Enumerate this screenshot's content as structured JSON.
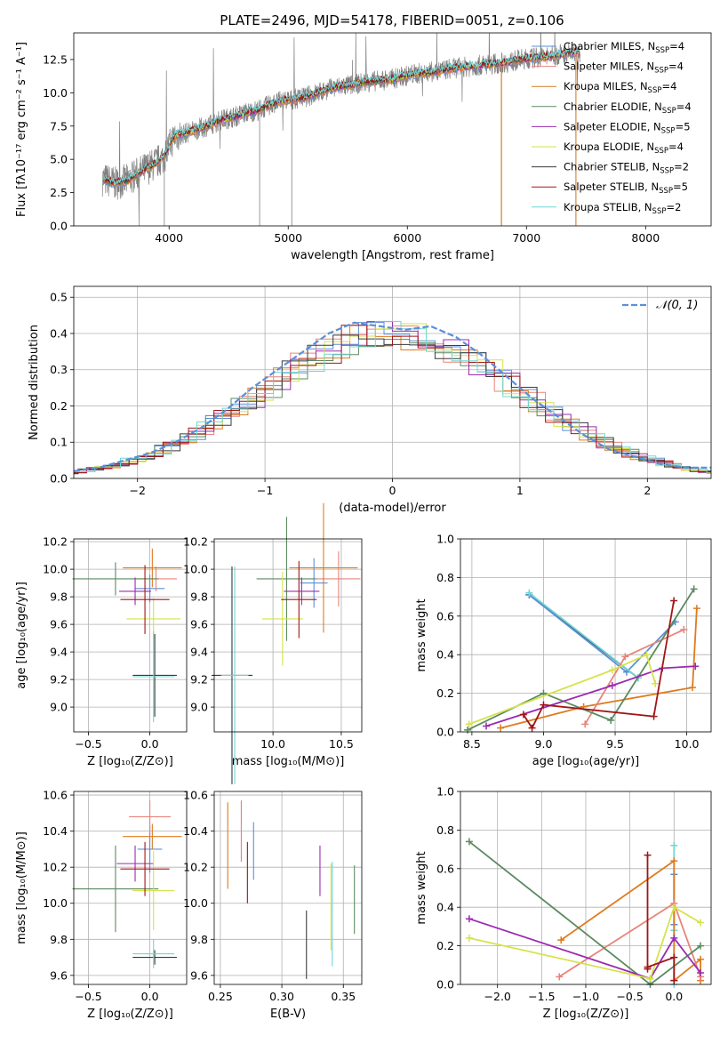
{
  "colors": {
    "miles_chab": "#5b8fd9",
    "miles_salp": "#e8837a",
    "miles_krou": "#de7b1f",
    "elodie_chab": "#5b8a60",
    "elodie_salp": "#9c2ab0",
    "elodie_krou": "#d6e24a",
    "stelib_chab": "#3a3a3a",
    "stelib_salp": "#a01616",
    "stelib_krou": "#6fd6d6",
    "gauss": "#5b8fd9",
    "data": "#808080"
  },
  "chart_data": [
    {
      "id": "spectrum",
      "type": "line",
      "title": "PLATE=2496, MJD=54178, FIBERID=0051, z=0.106",
      "xlabel": "wavelength [Angstrom, rest frame]",
      "ylabel": "Flux [fλ10⁻¹⁷ erg cm⁻² s⁻¹ A⁻¹]",
      "xlim": [
        3200,
        8550
      ],
      "ylim": [
        0,
        14.5
      ],
      "xticks": [
        "4000",
        "5000",
        "6000",
        "7000",
        "8000"
      ],
      "yticks": [
        "0.0",
        "2.5",
        "5.0",
        "7.5",
        "10.0",
        "12.5"
      ],
      "x": [
        3450,
        3550,
        3650,
        3750,
        3850,
        3950,
        4050,
        4150,
        4250,
        4350,
        4450,
        4550,
        4650,
        4750,
        4850,
        4950,
        5050,
        5150,
        5250,
        5350,
        5450,
        5550,
        5650,
        5750,
        5850,
        5950,
        6050,
        6150,
        6250,
        6350,
        6450,
        6550,
        6650,
        6750,
        6850,
        6950,
        7050,
        7150,
        7250,
        7350,
        7450
      ],
      "model_flux": [
        3.5,
        3.2,
        3.4,
        4.0,
        4.5,
        5.1,
        6.8,
        7.0,
        7.3,
        7.6,
        8.0,
        8.2,
        8.5,
        8.7,
        9.1,
        9.4,
        9.5,
        9.7,
        10.0,
        10.3,
        10.5,
        10.6,
        10.8,
        10.9,
        11.0,
        11.2,
        11.4,
        11.5,
        11.6,
        11.8,
        11.9,
        12.0,
        12.1,
        12.2,
        12.3,
        12.5,
        12.6,
        12.7,
        12.8,
        13.0,
        13.1
      ],
      "series": [
        {
          "name": "Chabrier MILES, N",
          "sub": "SSP",
          "eq": "=4",
          "color": "miles_chab"
        },
        {
          "name": "Salpeter MILES, N",
          "sub": "SSP",
          "eq": "=4",
          "color": "miles_salp"
        },
        {
          "name": "Kroupa MILES, N",
          "sub": "SSP",
          "eq": "=4",
          "color": "miles_krou"
        },
        {
          "name": "Chabrier ELODIE, N",
          "sub": "SSP",
          "eq": "=4",
          "color": "elodie_chab"
        },
        {
          "name": "Salpeter ELODIE, N",
          "sub": "SSP",
          "eq": "=5",
          "color": "elodie_salp"
        },
        {
          "name": "Kroupa ELODIE, N",
          "sub": "SSP",
          "eq": "=4",
          "color": "elodie_krou"
        },
        {
          "name": "Chabrier STELIB, N",
          "sub": "SSP",
          "eq": "=2",
          "color": "stelib_chab"
        },
        {
          "name": "Salpeter STELIB, N",
          "sub": "SSP",
          "eq": "=5",
          "color": "stelib_salp"
        },
        {
          "name": "Kroupa STELIB, N",
          "sub": "SSP",
          "eq": "=2",
          "color": "stelib_krou"
        }
      ]
    },
    {
      "id": "residuals",
      "type": "line",
      "xlabel": "(data-model)/error",
      "ylabel": "Normed distribution",
      "xlim": [
        -2.5,
        2.5
      ],
      "ylim": [
        0,
        0.53
      ],
      "xticks": [
        "−2",
        "−1",
        "0",
        "1",
        "2"
      ],
      "yticks": [
        "0.0",
        "0.1",
        "0.2",
        "0.3",
        "0.4",
        "0.5"
      ],
      "gauss_label": "𝒩(0, 1)",
      "x": [
        -2.5,
        -2.3,
        -2.1,
        -1.9,
        -1.7,
        -1.5,
        -1.3,
        -1.1,
        -0.9,
        -0.7,
        -0.5,
        -0.3,
        -0.1,
        0.1,
        0.3,
        0.5,
        0.7,
        0.9,
        1.1,
        1.3,
        1.5,
        1.7,
        1.9,
        2.1,
        2.3,
        2.5
      ],
      "y": [
        0.02,
        0.03,
        0.05,
        0.07,
        0.1,
        0.14,
        0.19,
        0.25,
        0.3,
        0.35,
        0.4,
        0.43,
        0.42,
        0.41,
        0.42,
        0.39,
        0.34,
        0.28,
        0.22,
        0.17,
        0.12,
        0.08,
        0.06,
        0.04,
        0.03,
        0.03
      ]
    },
    {
      "id": "age_z",
      "type": "scatter",
      "xlabel": "Z [log₁₀(Z/Z⊙)]",
      "ylabel": "age  [log₁₀(age/yr)]",
      "xlim": [
        -0.62,
        0.3
      ],
      "ylim": [
        8.82,
        10.22
      ],
      "xticks": [
        "−0.5",
        "0.0"
      ],
      "yticks": [
        "9.0",
        "9.2",
        "9.4",
        "9.6",
        "9.8",
        "10.0",
        "10.2"
      ],
      "points": [
        {
          "c": "miles_chab",
          "x": 0.0,
          "y": 9.86,
          "dx": 0.12,
          "dy": 0.1
        },
        {
          "c": "miles_salp",
          "x": 0.05,
          "y": 9.93,
          "dx": 0.17,
          "dy": 0.09
        },
        {
          "c": "miles_krou",
          "x": 0.02,
          "y": 10.01,
          "dx": 0.24,
          "dy": 0.14
        },
        {
          "c": "elodie_chab",
          "x": -0.28,
          "y": 9.93,
          "dx": 0.35,
          "dy": 0.12
        },
        {
          "c": "elodie_salp",
          "x": -0.12,
          "y": 9.84,
          "dx": 0.13,
          "dy": 0.1
        },
        {
          "c": "elodie_krou",
          "x": 0.03,
          "y": 9.64,
          "dx": 0.22,
          "dy": 0.15
        },
        {
          "c": "stelib_chab",
          "x": 0.04,
          "y": 9.23,
          "dx": 0.18,
          "dy": 0.3
        },
        {
          "c": "stelib_salp",
          "x": -0.04,
          "y": 9.78,
          "dx": 0.2,
          "dy": 0.25
        },
        {
          "c": "stelib_krou",
          "x": 0.03,
          "y": 9.22,
          "dx": 0.17,
          "dy": 0.33
        }
      ]
    },
    {
      "id": "age_mass",
      "type": "scatter",
      "xlabel": "mass [log₁₀(M/M⊙)]",
      "ylabel": "",
      "xlim": [
        9.57,
        10.65
      ],
      "ylim": [
        8.82,
        10.22
      ],
      "xticks": [
        "10.0",
        "10.5"
      ],
      "yticks": [
        "9.0",
        "9.2",
        "9.4",
        "9.6",
        "9.8",
        "10.0",
        "10.2"
      ],
      "points": [
        {
          "c": "miles_chab",
          "x": 10.3,
          "y": 9.9,
          "dx": 0.1,
          "dy": 0.18
        },
        {
          "c": "miles_salp",
          "x": 10.48,
          "y": 9.93,
          "dx": 0.16,
          "dy": 0.2
        },
        {
          "c": "miles_krou",
          "x": 10.37,
          "y": 10.01,
          "dx": 0.25,
          "dy": 0.47
        },
        {
          "c": "elodie_chab",
          "x": 10.1,
          "y": 9.93,
          "dx": 0.22,
          "dy": 0.45
        },
        {
          "c": "elodie_salp",
          "x": 10.21,
          "y": 9.84,
          "dx": 0.13,
          "dy": 0.1
        },
        {
          "c": "elodie_krou",
          "x": 10.07,
          "y": 9.64,
          "dx": 0.15,
          "dy": 0.34
        },
        {
          "c": "stelib_chab",
          "x": 9.7,
          "y": 9.23,
          "dx": 0.15,
          "dy": 0.79
        },
        {
          "c": "stelib_salp",
          "x": 10.19,
          "y": 9.78,
          "dx": 0.13,
          "dy": 0.28
        },
        {
          "c": "stelib_krou",
          "x": 9.72,
          "y": 9.23,
          "dx": 0.1,
          "dy": 0.79
        }
      ]
    },
    {
      "id": "weight_age",
      "type": "line",
      "xlabel": "age  [log₁₀(age/yr)]",
      "ylabel": "mass weight",
      "xlim": [
        8.42,
        10.17
      ],
      "ylim": [
        0,
        1
      ],
      "xticks": [
        "8.5",
        "9.0",
        "9.5",
        "10.0"
      ],
      "yticks": [
        "0.0",
        "0.2",
        "0.4",
        "0.6",
        "0.8",
        "1.0"
      ],
      "series": [
        {
          "c": "stelib_chab",
          "x": [
            8.9,
            9.66
          ],
          "y": [
            0.71,
            0.28
          ]
        },
        {
          "c": "miles_chab",
          "x": [
            8.9,
            9.58,
            9.92
          ],
          "y": [
            0.71,
            0.31,
            0.57
          ]
        },
        {
          "c": "stelib_krou",
          "x": [
            8.9,
            9.66
          ],
          "y": [
            0.72,
            0.28
          ]
        },
        {
          "c": "miles_krou",
          "x": [
            8.7,
            9.28,
            10.04,
            10.07
          ],
          "y": [
            0.02,
            0.13,
            0.23,
            0.64
          ]
        },
        {
          "c": "miles_salp",
          "x": [
            9.29,
            9.57,
            9.98
          ],
          "y": [
            0.04,
            0.39,
            0.53
          ]
        },
        {
          "c": "elodie_chab",
          "x": [
            8.47,
            9.0,
            9.47,
            10.05
          ],
          "y": [
            0.01,
            0.2,
            0.06,
            0.74
          ]
        },
        {
          "c": "elodie_salp",
          "x": [
            8.6,
            9.48,
            9.83,
            10.06
          ],
          "y": [
            0.03,
            0.24,
            0.33,
            0.34
          ]
        },
        {
          "c": "elodie_krou",
          "x": [
            8.48,
            9.48,
            9.72,
            9.78
          ],
          "y": [
            0.04,
            0.32,
            0.4,
            0.25
          ]
        },
        {
          "c": "stelib_salp",
          "x": [
            8.86,
            8.92,
            9.0,
            9.77,
            9.91
          ],
          "y": [
            0.09,
            0.02,
            0.14,
            0.08,
            0.68
          ]
        }
      ]
    },
    {
      "id": "mass_z",
      "type": "scatter",
      "xlabel": "Z [log₁₀(Z/Z⊙)]",
      "ylabel": "mass [log₁₀(M/M⊙)]",
      "xlim": [
        -0.62,
        0.3
      ],
      "ylim": [
        9.55,
        10.62
      ],
      "xticks": [
        "−0.5",
        "0.0"
      ],
      "yticks": [
        "9.6",
        "9.8",
        "10.0",
        "10.2",
        "10.4",
        "10.6"
      ],
      "points": [
        {
          "c": "miles_chab",
          "x": 0.0,
          "y": 10.3,
          "dx": 0.1,
          "dy": 0.13
        },
        {
          "c": "miles_salp",
          "x": 0.0,
          "y": 10.48,
          "dx": 0.17,
          "dy": 0.09
        },
        {
          "c": "miles_krou",
          "x": 0.02,
          "y": 10.37,
          "dx": 0.24,
          "dy": 0.07
        },
        {
          "c": "elodie_chab",
          "x": -0.28,
          "y": 10.08,
          "dx": 0.35,
          "dy": 0.24
        },
        {
          "c": "elodie_salp",
          "x": -0.12,
          "y": 10.22,
          "dx": 0.15,
          "dy": 0.1
        },
        {
          "c": "elodie_krou",
          "x": 0.03,
          "y": 10.07,
          "dx": 0.17,
          "dy": 0.22
        },
        {
          "c": "stelib_chab",
          "x": 0.04,
          "y": 9.7,
          "dx": 0.18,
          "dy": 0.04
        },
        {
          "c": "stelib_salp",
          "x": -0.04,
          "y": 10.19,
          "dx": 0.2,
          "dy": 0.15
        },
        {
          "c": "stelib_krou",
          "x": 0.03,
          "y": 9.72,
          "dx": 0.17,
          "dy": 0.08
        }
      ]
    },
    {
      "id": "mass_ebv",
      "type": "scatter",
      "xlabel": "E(B-V)",
      "ylabel": "",
      "xlim": [
        0.245,
        0.365
      ],
      "ylim": [
        9.55,
        10.62
      ],
      "xticks": [
        "0.25",
        "0.30",
        "0.35"
      ],
      "yticks": [
        "9.6",
        "9.8",
        "10.0",
        "10.2",
        "10.4",
        "10.6"
      ],
      "points": [
        {
          "c": "miles_chab",
          "x": 0.277,
          "y": 10.29,
          "dx": 0,
          "dy": 0.16
        },
        {
          "c": "miles_salp",
          "x": 0.267,
          "y": 10.4,
          "dx": 0,
          "dy": 0.17
        },
        {
          "c": "miles_krou",
          "x": 0.256,
          "y": 10.32,
          "dx": 0,
          "dy": 0.24
        },
        {
          "c": "elodie_chab",
          "x": 0.359,
          "y": 10.02,
          "dx": 0,
          "dy": 0.19
        },
        {
          "c": "elodie_salp",
          "x": 0.331,
          "y": 10.18,
          "dx": 0,
          "dy": 0.14
        },
        {
          "c": "elodie_krou",
          "x": 0.34,
          "y": 9.98,
          "dx": 0,
          "dy": 0.24
        },
        {
          "c": "stelib_chab",
          "x": 0.32,
          "y": 9.77,
          "dx": 0,
          "dy": 0.19
        },
        {
          "c": "stelib_salp",
          "x": 0.272,
          "y": 10.17,
          "dx": 0,
          "dy": 0.17
        },
        {
          "c": "stelib_krou",
          "x": 0.341,
          "y": 9.94,
          "dx": 0,
          "dy": 0.29
        }
      ]
    },
    {
      "id": "weight_z",
      "type": "line",
      "xlabel": "Z [log₁₀(Z/Z⊙)]",
      "ylabel": "mass weight",
      "xlim": [
        -2.42,
        0.42
      ],
      "ylim": [
        0,
        1
      ],
      "xticks": [
        "−2.0",
        "−1.5",
        "−1.0",
        "−0.5",
        "0.0"
      ],
      "yticks": [
        "0.0",
        "0.2",
        "0.4",
        "0.6",
        "0.8",
        "1.0"
      ],
      "series": [
        {
          "c": "stelib_krou",
          "x": [
            0.0,
            0.0,
            0.0
          ],
          "y": [
            0.72,
            0.28,
            0.0
          ]
        },
        {
          "c": "miles_chab",
          "x": [
            0.0,
            0.0
          ],
          "y": [
            0.57,
            0.31
          ]
        },
        {
          "c": "miles_krou",
          "x": [
            -1.28,
            0.0,
            0.0,
            0.3,
            0.3
          ],
          "y": [
            0.23,
            0.64,
            0.02,
            0.13,
            0.02
          ]
        },
        {
          "c": "miles_salp",
          "x": [
            -1.3,
            0.0,
            0.3
          ],
          "y": [
            0.04,
            0.42,
            0.04
          ]
        },
        {
          "c": "elodie_chab",
          "x": [
            -2.32,
            -0.27,
            0.3
          ],
          "y": [
            0.74,
            0.0,
            0.2
          ]
        },
        {
          "c": "elodie_salp",
          "x": [
            -2.32,
            -0.27,
            0.0,
            0.3
          ],
          "y": [
            0.34,
            0.03,
            0.24,
            0.06
          ]
        },
        {
          "c": "elodie_krou",
          "x": [
            -2.32,
            -0.27,
            0.0,
            0.3
          ],
          "y": [
            0.24,
            0.03,
            0.4,
            0.32
          ]
        },
        {
          "c": "stelib_salp",
          "x": [
            -0.3,
            -0.3,
            -0.3,
            0.0,
            0.0
          ],
          "y": [
            0.67,
            0.08,
            0.09,
            0.14,
            0.02
          ]
        }
      ]
    }
  ]
}
